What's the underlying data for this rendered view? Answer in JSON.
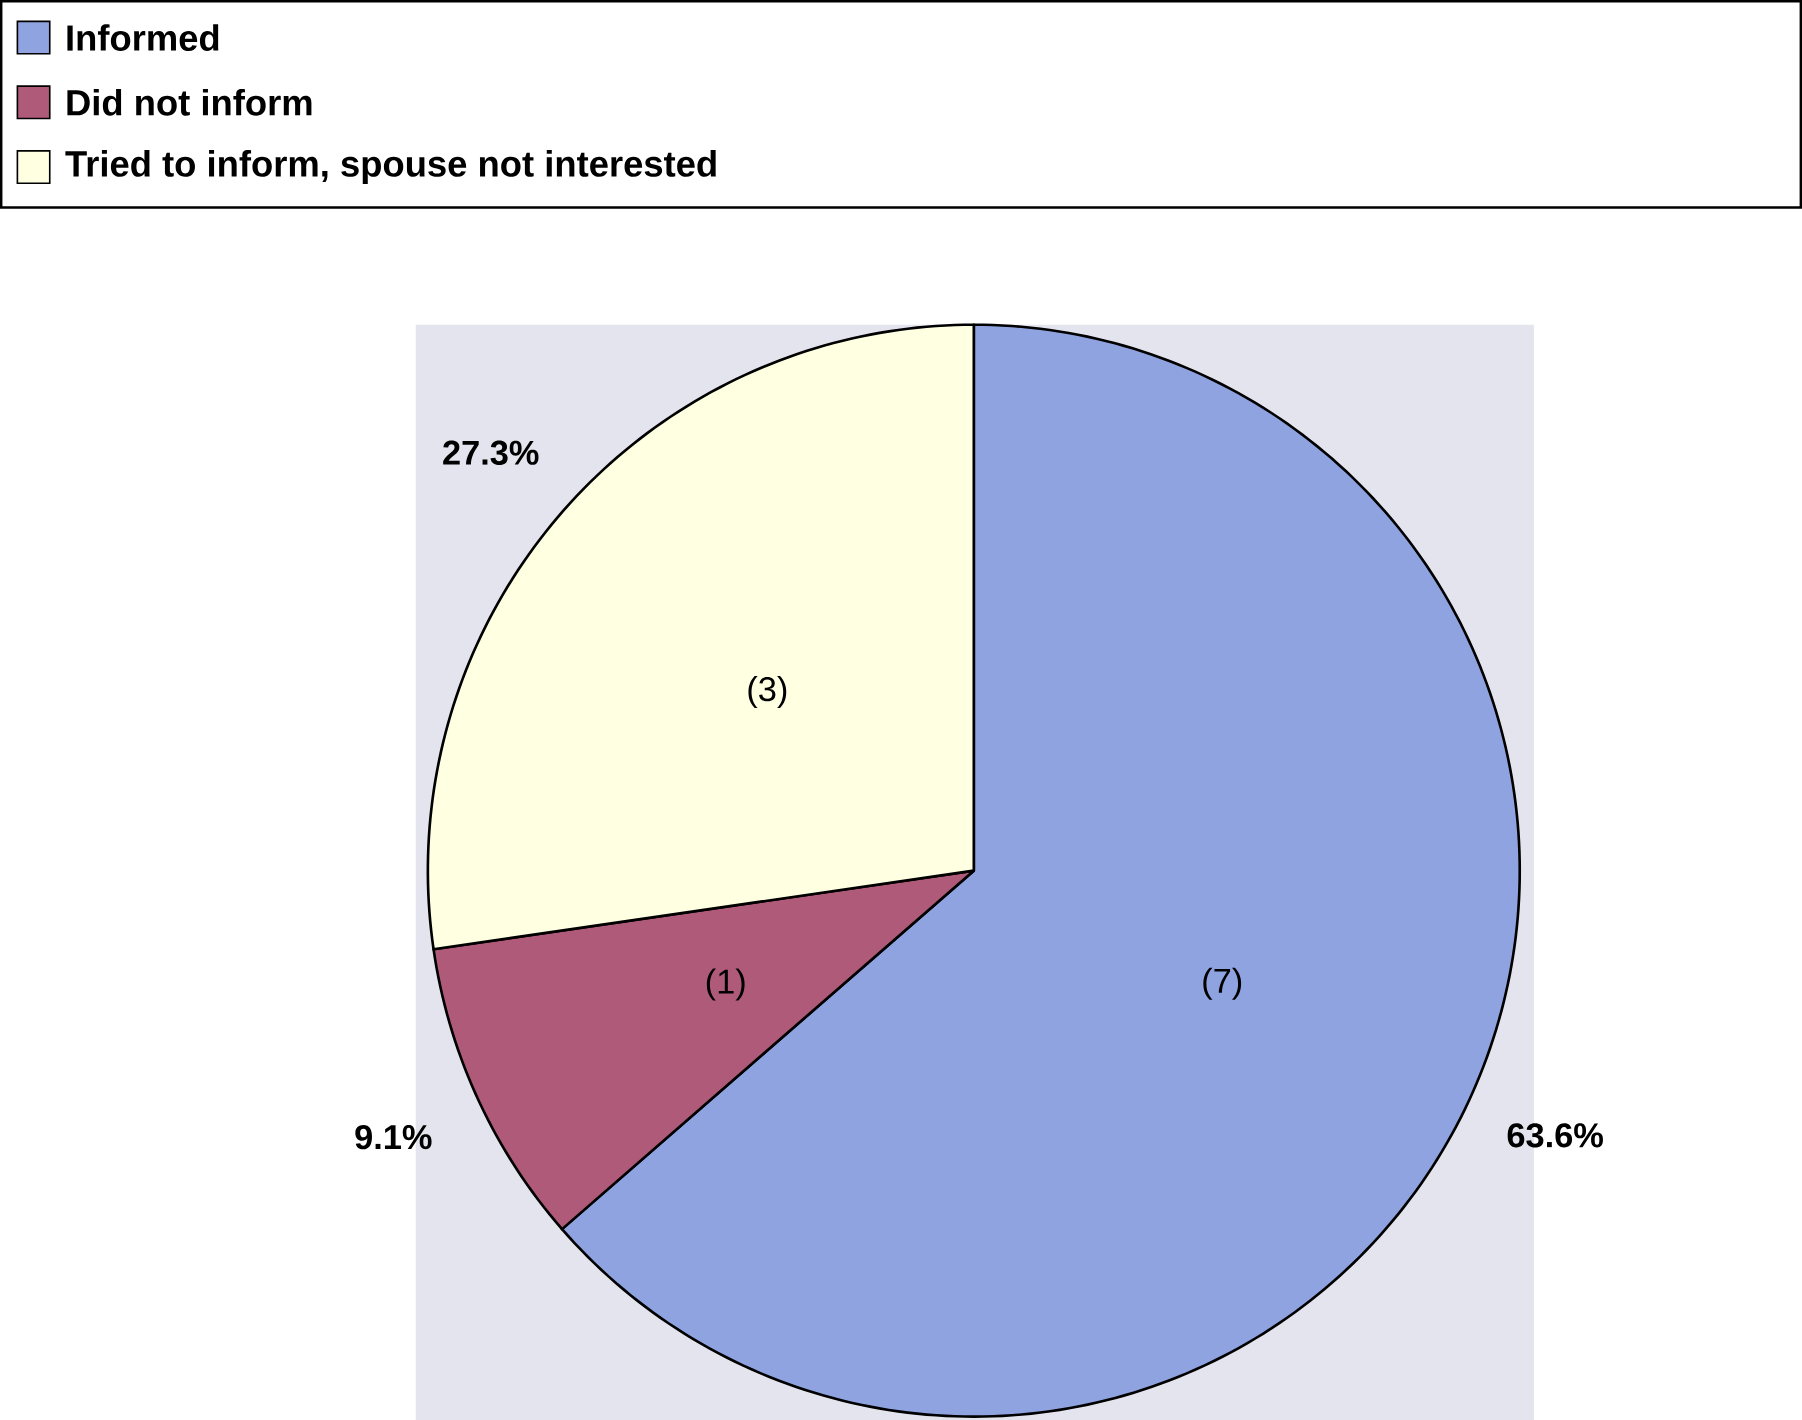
{
  "chart_data": {
    "type": "pie",
    "categories": [
      "Informed",
      "Did not inform",
      "Tried to inform, spouse not interested"
    ],
    "values": [
      63.6,
      9.1,
      27.3
    ],
    "colors": [
      "#8fa3e0",
      "#b05a7a",
      "#ffffe2"
    ],
    "value_labels": [
      "63.6%",
      "9.1%",
      "27.3%"
    ],
    "annotations": [
      "(7)",
      "(1)",
      "(3)"
    ],
    "legend": "top"
  }
}
